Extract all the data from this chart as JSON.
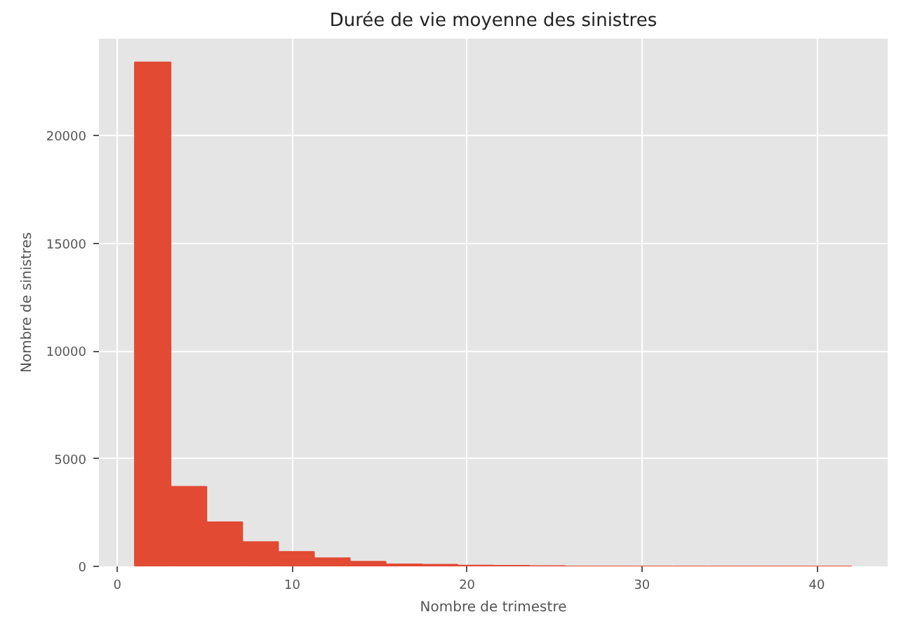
{
  "chart_data": {
    "type": "histogram",
    "title": "Durée de vie moyenne des sinistres",
    "xlabel": "Nombre de trimestre",
    "ylabel": "Nombre de sinistres",
    "bins": [
      1,
      3.05,
      5.1,
      7.15,
      9.2,
      11.25,
      13.3,
      15.35,
      17.4,
      19.45,
      21.5,
      23.55,
      25.6,
      27.65,
      29.7,
      31.75,
      33.8,
      35.85,
      37.9,
      39.95,
      42
    ],
    "values": [
      23400,
      3700,
      2050,
      1130,
      680,
      380,
      220,
      100,
      80,
      40,
      30,
      20,
      0,
      0,
      0,
      0,
      0,
      0,
      0,
      0
    ],
    "color": "#e24a33",
    "xlim": [
      -1.05,
      44.05
    ],
    "ylim": [
      0,
      24500
    ],
    "xticks": [
      0,
      10,
      20,
      30,
      40
    ],
    "yticks": [
      0,
      5000,
      10000,
      15000,
      20000
    ],
    "grid": true
  }
}
